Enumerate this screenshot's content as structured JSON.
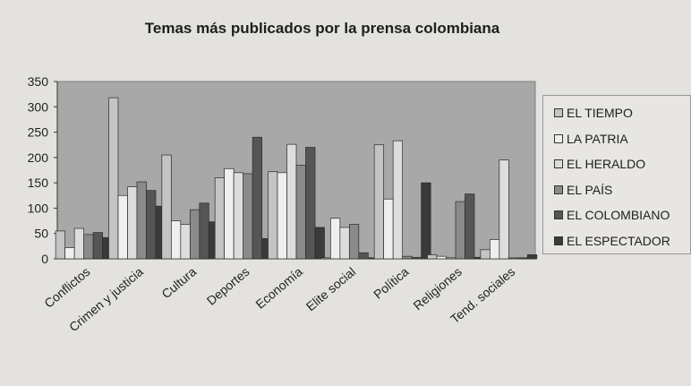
{
  "chart_data": {
    "type": "bar",
    "title": "Temas más publicados por la prensa colombiana",
    "xlabel": "",
    "ylabel": "",
    "ylim": [
      0,
      350
    ],
    "yticks": [
      0,
      50,
      100,
      150,
      200,
      250,
      300,
      350
    ],
    "grid": false,
    "legend_position": "right",
    "categories": [
      "Conflictos",
      "Crimen y justicia",
      "Cultura",
      "Deportes",
      "Economía",
      "Elite social",
      "Política",
      "Religiones",
      "Tend. sociales"
    ],
    "series": [
      {
        "name": "EL TIEMPO",
        "color": "#c4c4c4",
        "values": [
          55,
          318,
          205,
          160,
          172,
          2,
          225,
          8,
          18
        ]
      },
      {
        "name": "LA PATRIA",
        "color": "#efefef",
        "values": [
          22,
          125,
          75,
          178,
          170,
          80,
          118,
          5,
          38
        ]
      },
      {
        "name": "EL HERALDO",
        "color": "#dddddd",
        "values": [
          60,
          142,
          68,
          170,
          226,
          62,
          233,
          2,
          195
        ]
      },
      {
        "name": "EL PAÍS",
        "color": "#8a8a8a",
        "values": [
          48,
          152,
          97,
          168,
          185,
          68,
          5,
          113,
          2
        ]
      },
      {
        "name": "EL COLOMBIANO",
        "color": "#555555",
        "values": [
          52,
          135,
          110,
          240,
          220,
          12,
          3,
          128,
          2
        ]
      },
      {
        "name": "EL ESPECTADOR",
        "color": "#3a3a3a",
        "values": [
          42,
          104,
          73,
          40,
          62,
          2,
          150,
          3,
          8
        ]
      }
    ]
  }
}
